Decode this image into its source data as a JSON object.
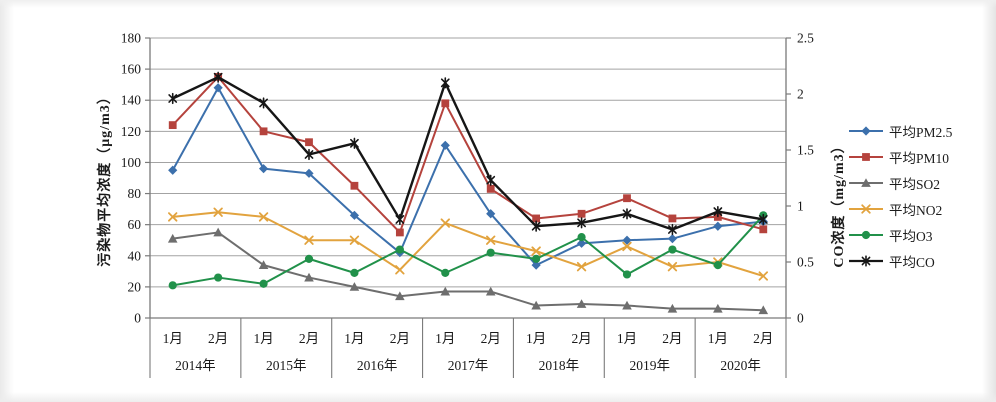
{
  "chart_data": {
    "type": "line",
    "title": "",
    "grid": true,
    "legend_position": "right",
    "x_axis": {
      "month_labels": [
        "1月",
        "2月",
        "1月",
        "2月",
        "1月",
        "2月",
        "1月",
        "2月",
        "1月",
        "2月",
        "1月",
        "2月",
        "1月",
        "2月"
      ],
      "year_labels": [
        "2014年",
        "2015年",
        "2016年",
        "2017年",
        "2018年",
        "2019年",
        "2020年"
      ]
    },
    "left_axis": {
      "title": "污染物平均浓度（μg/m3）",
      "min": 0,
      "max": 180,
      "tick_step": 20,
      "tick_labels": [
        "0",
        "20",
        "40",
        "60",
        "80",
        "100",
        "120",
        "140",
        "160",
        "180"
      ]
    },
    "right_axis": {
      "title": "CO浓度（mg/m3）",
      "min": 0,
      "max": 2.5,
      "tick_step": 0.5,
      "tick_labels": [
        "0",
        "0.5",
        "1",
        "1.5",
        "2",
        "2.5"
      ]
    },
    "series": [
      {
        "name": "平均PM2.5",
        "marker": "diamond",
        "color": "#3C70AC",
        "axis": "left",
        "values": [
          95,
          148,
          96,
          93,
          66,
          42,
          111,
          67,
          34,
          48,
          50,
          51,
          59,
          62
        ]
      },
      {
        "name": "平均PM10",
        "marker": "square",
        "color": "#B5433D",
        "axis": "left",
        "values": [
          124,
          155,
          120,
          113,
          85,
          55,
          138,
          83,
          64,
          67,
          77,
          64,
          65,
          57
        ]
      },
      {
        "name": "平均SO2",
        "marker": "triangle",
        "color": "#6E6E6E",
        "axis": "left",
        "values": [
          51,
          55,
          34,
          26,
          20,
          14,
          17,
          17,
          8,
          9,
          8,
          6,
          6,
          5
        ]
      },
      {
        "name": "平均NO2",
        "marker": "x",
        "color": "#E2A33E",
        "axis": "left",
        "values": [
          65,
          68,
          65,
          50,
          50,
          31,
          61,
          50,
          43,
          33,
          46,
          33,
          36,
          27
        ]
      },
      {
        "name": "平均O3",
        "marker": "circle",
        "color": "#21914A",
        "axis": "left",
        "values": [
          21,
          26,
          22,
          38,
          29,
          44,
          29,
          42,
          38,
          52,
          28,
          44,
          34,
          66
        ]
      },
      {
        "name": "平均CO",
        "marker": "asterisk",
        "color": "#161616",
        "axis": "right",
        "values": [
          1.96,
          2.15,
          1.92,
          1.46,
          1.56,
          0.88,
          2.1,
          1.23,
          0.82,
          0.85,
          0.93,
          0.79,
          0.95,
          0.88
        ]
      }
    ]
  }
}
